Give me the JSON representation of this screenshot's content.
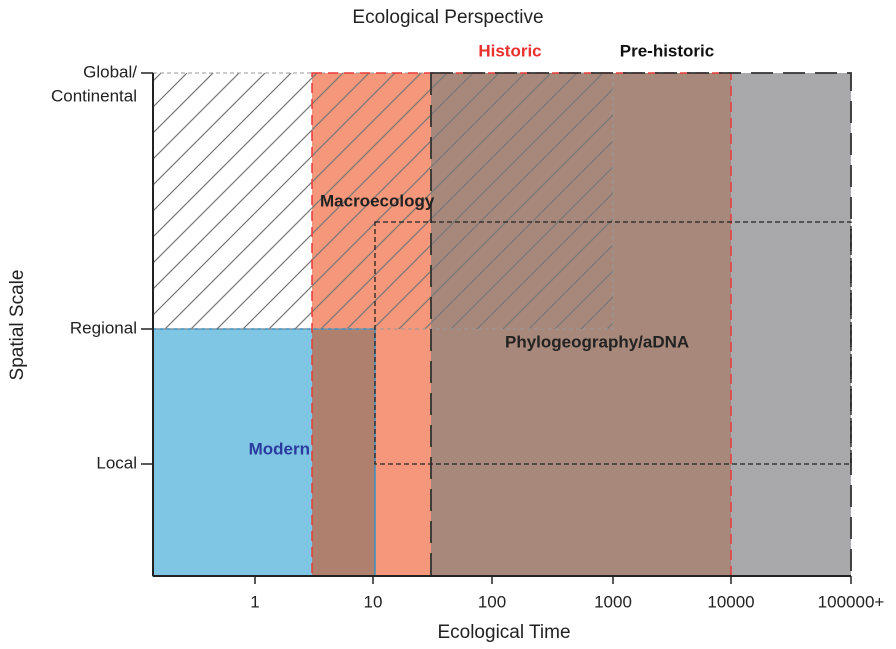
{
  "title": "Ecological Perspective",
  "x_axis": {
    "label": "Ecological Time",
    "ticks": [
      "1",
      "10",
      "100",
      "1000",
      "10000",
      "100000+"
    ]
  },
  "y_axis": {
    "label": "Spatial Scale",
    "ticks": [
      {
        "lines": [
          "Global/",
          "Continental"
        ]
      },
      {
        "lines": [
          "Regional"
        ]
      },
      {
        "lines": [
          "Local"
        ]
      }
    ]
  },
  "regions": {
    "historic": "Historic",
    "prehistoric": "Pre-historic",
    "macroecology": "Macroecology",
    "phylogeography": "Phylogeography/aDNA",
    "modern": "Modern"
  }
}
